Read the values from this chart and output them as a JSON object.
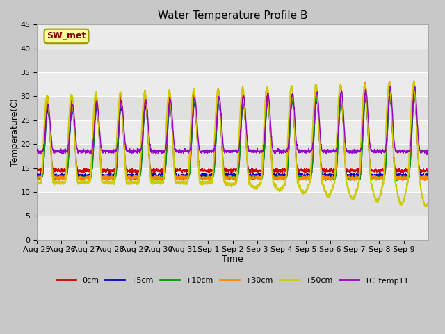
{
  "title": "Water Temperature Profile B",
  "xlabel": "Time",
  "ylabel": "Temperature(C)",
  "ylim": [
    0,
    45
  ],
  "yticks": [
    0,
    5,
    10,
    15,
    20,
    25,
    30,
    35,
    40,
    45
  ],
  "series": [
    "0cm",
    "+5cm",
    "+10cm",
    "+30cm",
    "+50cm",
    "TC_temp11"
  ],
  "colors": [
    "#cc0000",
    "#0000cc",
    "#009900",
    "#ff8800",
    "#cccc00",
    "#9900cc"
  ],
  "linewidths": [
    1.0,
    1.0,
    1.0,
    1.2,
    1.5,
    1.0
  ],
  "legend_label": "SW_met",
  "legend_bg": "#ffff99",
  "legend_border": "#999900",
  "legend_text_color": "#880000",
  "x_tick_labels": [
    "Aug 25",
    "Aug 26",
    "Aug 27",
    "Aug 28",
    "Aug 29",
    "Aug 30",
    "Aug 31",
    "Sep 1",
    "Sep 2",
    "Sep 3",
    "Sep 4",
    "Sep 5",
    "Sep 6",
    "Sep 7",
    "Sep 8",
    "Sep 9"
  ],
  "figsize": [
    6.4,
    4.8
  ],
  "dpi": 100,
  "n_days": 16,
  "band_colors": [
    "#f0f0f0",
    "#e0e0e0",
    "#f0f0f0",
    "#e0e0e0",
    "#f0f0f0",
    "#e0e0e0",
    "#f0f0f0",
    "#e0e0e0",
    "#f0f0f0"
  ]
}
